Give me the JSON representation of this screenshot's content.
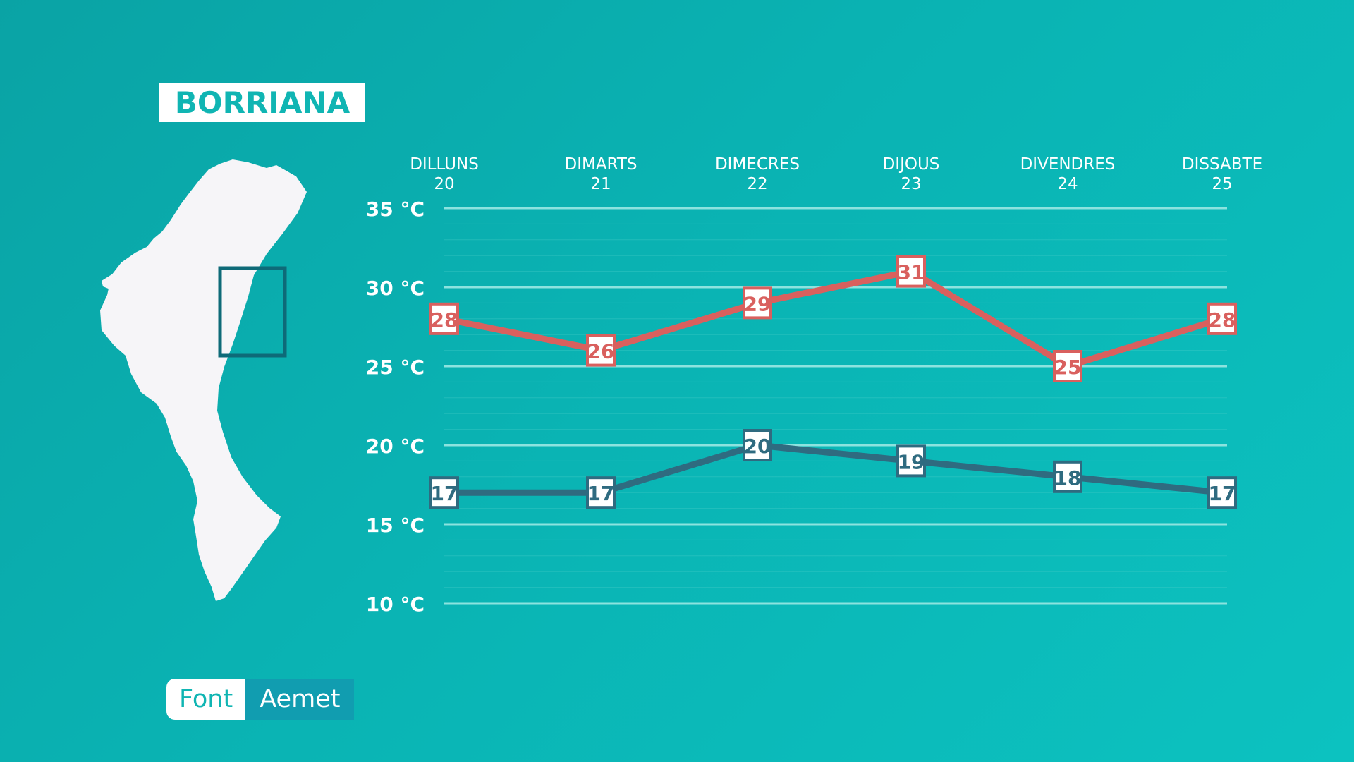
{
  "location": "BORRIANA",
  "source": {
    "label": "Font",
    "value": "Aemet"
  },
  "colors": {
    "max_line": "#d9605e",
    "min_line": "#2f6b80",
    "grid": "#8ce3df",
    "text": "#ffffff",
    "map": "#f6f5f8",
    "highlight_box": "#0e6a78"
  },
  "chart_data": {
    "type": "line",
    "categories": [
      {
        "day": "DILLUNS",
        "date": "20"
      },
      {
        "day": "DIMARTS",
        "date": "21"
      },
      {
        "day": "DIMECRES",
        "date": "22"
      },
      {
        "day": "DIJOUS",
        "date": "23"
      },
      {
        "day": "DIVENDRES",
        "date": "24"
      },
      {
        "day": "DISSABTE",
        "date": "25"
      }
    ],
    "y_ticks": [
      {
        "value": 35,
        "label": "35 °C"
      },
      {
        "value": 30,
        "label": "30 °C"
      },
      {
        "value": 25,
        "label": "25 °C"
      },
      {
        "value": 20,
        "label": "20 °C"
      },
      {
        "value": 15,
        "label": "15 °C"
      },
      {
        "value": 10,
        "label": "10 °C"
      }
    ],
    "ylim": [
      10,
      35
    ],
    "series": [
      {
        "key": "max",
        "values": [
          28,
          26,
          29,
          31,
          25,
          28
        ],
        "color": "#d9605e"
      },
      {
        "key": "min",
        "values": [
          17,
          17,
          20,
          19,
          18,
          17
        ],
        "color": "#2f6b80"
      }
    ],
    "grid": true
  }
}
